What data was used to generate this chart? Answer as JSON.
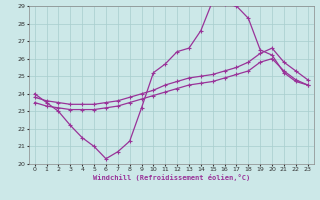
{
  "xlabel": "Windchill (Refroidissement éolien,°C)",
  "xlim": [
    -0.5,
    23.5
  ],
  "ylim": [
    20,
    29
  ],
  "xticks": [
    0,
    1,
    2,
    3,
    4,
    5,
    6,
    7,
    8,
    9,
    10,
    11,
    12,
    13,
    14,
    15,
    16,
    17,
    18,
    19,
    20,
    21,
    22,
    23
  ],
  "yticks": [
    20,
    21,
    22,
    23,
    24,
    25,
    26,
    27,
    28,
    29
  ],
  "bg_color": "#cce8e8",
  "grid_color": "#a8cece",
  "line_color": "#993399",
  "lw": 0.9,
  "ms": 2.5,
  "curve1_x": [
    0,
    1,
    2,
    3,
    4,
    5,
    6,
    7,
    8,
    9,
    10,
    11,
    12,
    13,
    14,
    15,
    16,
    17,
    18,
    19,
    20,
    21,
    22,
    23
  ],
  "curve1_y": [
    24.0,
    23.5,
    23.0,
    22.2,
    21.5,
    21.0,
    20.3,
    20.7,
    21.3,
    23.2,
    25.2,
    25.7,
    26.4,
    26.6,
    27.6,
    29.3,
    29.1,
    29.0,
    28.3,
    26.5,
    26.2,
    25.2,
    24.7,
    24.5
  ],
  "curve2_x": [
    0,
    1,
    2,
    3,
    4,
    5,
    6,
    7,
    8,
    9,
    10,
    11,
    12,
    13,
    14,
    15,
    16,
    17,
    18,
    19,
    20,
    21,
    22,
    23
  ],
  "curve2_y": [
    23.8,
    23.6,
    23.5,
    23.4,
    23.4,
    23.4,
    23.5,
    23.6,
    23.8,
    24.0,
    24.2,
    24.5,
    24.7,
    24.9,
    25.0,
    25.1,
    25.3,
    25.5,
    25.8,
    26.3,
    26.6,
    25.8,
    25.3,
    24.8
  ],
  "curve3_x": [
    0,
    1,
    2,
    3,
    4,
    5,
    6,
    7,
    8,
    9,
    10,
    11,
    12,
    13,
    14,
    15,
    16,
    17,
    18,
    19,
    20,
    21,
    22,
    23
  ],
  "curve3_y": [
    23.5,
    23.3,
    23.2,
    23.1,
    23.1,
    23.1,
    23.2,
    23.3,
    23.5,
    23.7,
    23.9,
    24.1,
    24.3,
    24.5,
    24.6,
    24.7,
    24.9,
    25.1,
    25.3,
    25.8,
    26.0,
    25.3,
    24.8,
    24.5
  ]
}
